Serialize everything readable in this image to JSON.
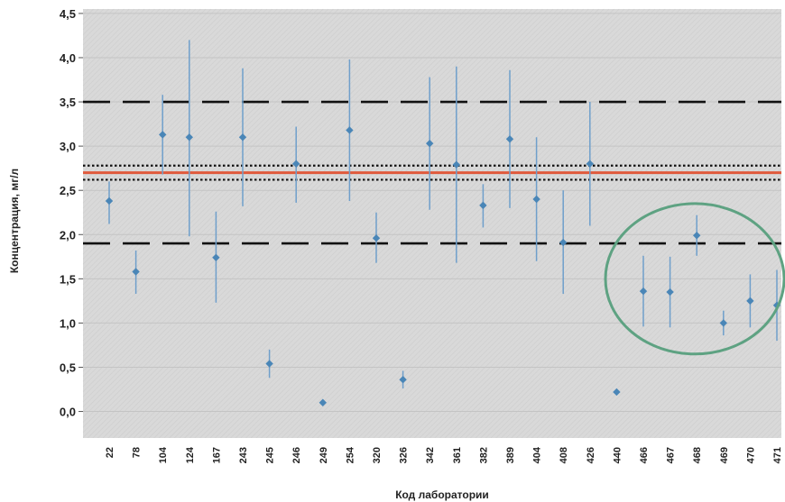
{
  "chart_data": {
    "type": "scatter",
    "title": "",
    "xlabel": "Код лаборатории",
    "ylabel": "Концентрация, мг/л",
    "ylim": [
      -0.3,
      4.55
    ],
    "yticks": [
      "0,0",
      "0,5",
      "1,0",
      "1,5",
      "2,0",
      "2,5",
      "3,0",
      "3,5",
      "4,0",
      "4,5"
    ],
    "ytick_values": [
      0,
      0.5,
      1.0,
      1.5,
      2.0,
      2.5,
      3.0,
      3.5,
      4.0,
      4.5
    ],
    "grid": true,
    "categories": [
      "22",
      "78",
      "104",
      "124",
      "167",
      "243",
      "245",
      "246",
      "249",
      "254",
      "320",
      "326",
      "342",
      "361",
      "382",
      "389",
      "404",
      "408",
      "426",
      "440",
      "466",
      "467",
      "468",
      "469",
      "470",
      "471"
    ],
    "points": [
      {
        "lab": "22",
        "value": 2.38,
        "low": 2.12,
        "high": 2.6
      },
      {
        "lab": "78",
        "value": 1.58,
        "low": 1.33,
        "high": 1.82
      },
      {
        "lab": "104",
        "value": 3.13,
        "low": 2.68,
        "high": 3.58
      },
      {
        "lab": "124",
        "value": 3.1,
        "low": 1.98,
        "high": 4.2
      },
      {
        "lab": "167",
        "value": 1.74,
        "low": 1.23,
        "high": 2.26
      },
      {
        "lab": "243",
        "value": 3.1,
        "low": 2.32,
        "high": 3.88
      },
      {
        "lab": "245",
        "value": 0.54,
        "low": 0.38,
        "high": 0.7
      },
      {
        "lab": "246",
        "value": 2.8,
        "low": 2.36,
        "high": 3.22
      },
      {
        "lab": "249",
        "value": 0.1,
        "low": 0.1,
        "high": 0.1
      },
      {
        "lab": "254",
        "value": 3.18,
        "low": 2.38,
        "high": 3.98
      },
      {
        "lab": "320",
        "value": 1.96,
        "low": 1.68,
        "high": 2.25
      },
      {
        "lab": "326",
        "value": 0.36,
        "low": 0.26,
        "high": 0.46
      },
      {
        "lab": "342",
        "value": 3.03,
        "low": 2.28,
        "high": 3.78
      },
      {
        "lab": "361",
        "value": 2.79,
        "low": 1.68,
        "high": 3.9
      },
      {
        "lab": "382",
        "value": 2.33,
        "low": 2.08,
        "high": 2.57
      },
      {
        "lab": "389",
        "value": 3.08,
        "low": 2.3,
        "high": 3.86
      },
      {
        "lab": "404",
        "value": 2.4,
        "low": 1.7,
        "high": 3.1
      },
      {
        "lab": "408",
        "value": 1.91,
        "low": 1.33,
        "high": 2.5
      },
      {
        "lab": "426",
        "value": 2.8,
        "low": 2.1,
        "high": 3.5
      },
      {
        "lab": "440",
        "value": 0.22,
        "low": 0.22,
        "high": 0.22
      },
      {
        "lab": "466",
        "value": 1.36,
        "low": 0.96,
        "high": 1.76
      },
      {
        "lab": "467",
        "value": 1.35,
        "low": 0.95,
        "high": 1.75
      },
      {
        "lab": "468",
        "value": 1.99,
        "low": 1.76,
        "high": 2.22
      },
      {
        "lab": "469",
        "value": 1.0,
        "low": 0.86,
        "high": 1.14
      },
      {
        "lab": "470",
        "value": 1.25,
        "low": 0.95,
        "high": 1.55
      },
      {
        "lab": "471",
        "value": 1.2,
        "low": 0.8,
        "high": 1.6
      }
    ],
    "reference_lines": [
      {
        "style": "dashed",
        "color": "#111111",
        "y": 3.5
      },
      {
        "style": "dashed",
        "color": "#111111",
        "y": 1.9
      },
      {
        "style": "dotted",
        "color": "#111111",
        "y": 2.78
      },
      {
        "style": "dotted",
        "color": "#111111",
        "y": 2.62
      },
      {
        "style": "solid",
        "color": "#e05a3c",
        "y": 2.7
      }
    ],
    "highlight": {
      "shape": "ellipse",
      "color": "#5ea282",
      "x_from": "466",
      "x_to": "471",
      "y_low": 0.65,
      "y_high": 2.35
    },
    "colors": {
      "marker": "#4a86b7",
      "errorbar": "#6f9fcb",
      "plot_background": "#d9d9d9",
      "grid": "#c4c4c4",
      "text": "#222222"
    }
  }
}
